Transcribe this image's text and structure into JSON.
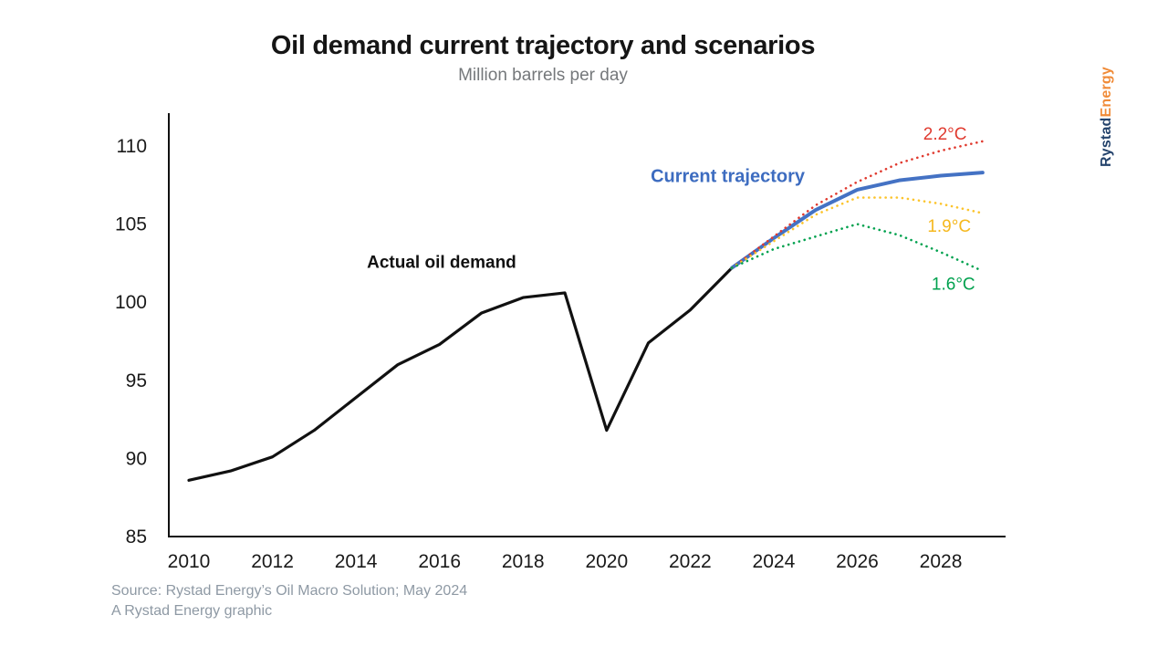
{
  "header": {
    "title": "Oil demand current trajectory and scenarios",
    "subtitle": "Million barrels per day"
  },
  "branding": {
    "logo_part1": "Rystad",
    "logo_part2": "Energy",
    "navy": "#24436c",
    "orange": "#f08b38"
  },
  "footer": {
    "source_line1": "Source: Rystad Energy’s Oil Macro Solution; May 2024",
    "source_line2": "A Rystad Energy graphic"
  },
  "chart_data": {
    "type": "line",
    "title": "Oil demand current trajectory and scenarios",
    "ylabel": "Million barrels per day",
    "xlabel": "",
    "grid": false,
    "legend_position": "inline-labels",
    "x_range": [
      2010,
      2029
    ],
    "y_range": [
      85,
      111.5
    ],
    "x_ticks": [
      2010,
      2012,
      2014,
      2016,
      2018,
      2020,
      2022,
      2024,
      2026,
      2028
    ],
    "y_ticks": [
      110,
      105,
      100,
      95,
      90,
      85
    ],
    "series": [
      {
        "name": "Actual oil demand",
        "color": "#111111",
        "style": "solid",
        "width": 3.2,
        "x": [
          2010,
          2011,
          2012,
          2013,
          2014,
          2015,
          2016,
          2017,
          2018,
          2019,
          2020,
          2021,
          2022,
          2023
        ],
        "values": [
          88.6,
          89.2,
          90.1,
          91.8,
          93.9,
          96.0,
          97.3,
          99.3,
          100.3,
          100.6,
          91.8,
          97.4,
          99.5,
          102.2
        ]
      },
      {
        "name": "Current trajectory",
        "color": "#4472c4",
        "style": "solid",
        "width": 4,
        "x": [
          2023,
          2024,
          2025,
          2026,
          2027,
          2028,
          2029
        ],
        "values": [
          102.2,
          104.1,
          105.9,
          107.2,
          107.8,
          108.1,
          108.3
        ]
      },
      {
        "name": "2.2°C",
        "color": "#e03a2f",
        "style": "dotted",
        "width": 2.6,
        "x": [
          2023,
          2024,
          2025,
          2026,
          2027,
          2028,
          2029
        ],
        "values": [
          102.2,
          104.2,
          106.2,
          107.7,
          108.9,
          109.7,
          110.3
        ]
      },
      {
        "name": "1.9°C",
        "color": "#fcc42c",
        "style": "dotted",
        "width": 2.6,
        "x": [
          2023,
          2024,
          2025,
          2026,
          2027,
          2028,
          2029
        ],
        "values": [
          102.2,
          103.9,
          105.6,
          106.7,
          106.7,
          106.3,
          105.7
        ]
      },
      {
        "name": "1.6°C",
        "color": "#00a14e",
        "style": "dotted",
        "width": 2.6,
        "x": [
          2023,
          2024,
          2025,
          2026,
          2027,
          2028,
          2029
        ],
        "values": [
          102.2,
          103.4,
          104.2,
          105.0,
          104.3,
          103.2,
          102.0
        ]
      }
    ],
    "annotations": [
      {
        "text": "Actual oil demand",
        "x": 2016.05,
        "y": 102.2,
        "color": "#111111",
        "bold": true,
        "size": 19
      },
      {
        "text": "Current trajectory",
        "x": 2022.9,
        "y": 107.7,
        "color": "#3d6cc0",
        "bold": true,
        "size": 20
      },
      {
        "text": "2.2°C",
        "x": 2028.1,
        "y": 110.4,
        "color": "#e03a2f",
        "bold": false,
        "size": 19
      },
      {
        "text": "1.9°C",
        "x": 2028.2,
        "y": 104.5,
        "color": "#f5b81e",
        "bold": false,
        "size": 19
      },
      {
        "text": "1.6°C",
        "x": 2028.3,
        "y": 100.8,
        "color": "#00a14e",
        "bold": false,
        "size": 19
      }
    ]
  }
}
